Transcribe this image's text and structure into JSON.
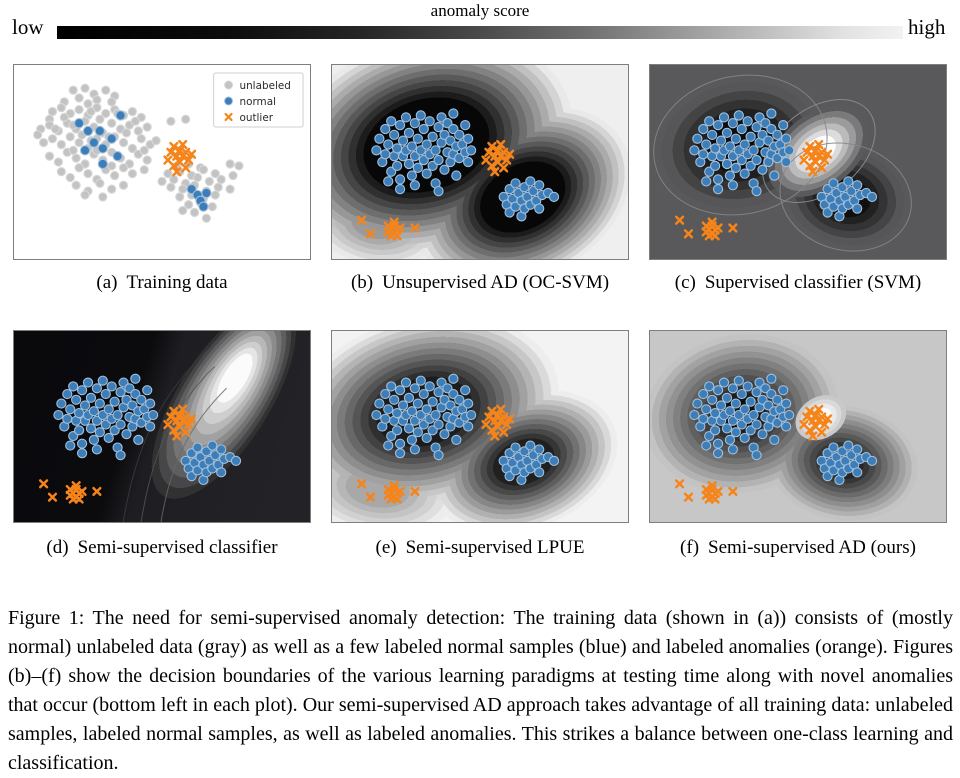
{
  "colorbar": {
    "title": "anomaly score",
    "low_label": "low",
    "high_label": "high",
    "gradient_endpoints": [
      "#000000",
      "#f2f2f2"
    ]
  },
  "legend": {
    "items": [
      {
        "label": "unlabeled",
        "marker": "circle",
        "role": "unlabeled"
      },
      {
        "label": "normal",
        "marker": "circle",
        "role": "normal"
      },
      {
        "label": "outlier",
        "marker": "x",
        "role": "outlier"
      }
    ]
  },
  "panels": [
    {
      "id": "a",
      "label": "(a)",
      "title": "Training data"
    },
    {
      "id": "b",
      "label": "(b)",
      "title": "Unsupervised AD (OC-SVM)"
    },
    {
      "id": "c",
      "label": "(c)",
      "title": "Supervised classifier (SVM)"
    },
    {
      "id": "d",
      "label": "(d)",
      "title": "Semi-supervised classifier"
    },
    {
      "id": "e",
      "label": "(e)",
      "title": "Semi-supervised LPUE"
    },
    {
      "id": "f",
      "label": "(f)",
      "title": "Semi-supervised AD (ours)"
    }
  ],
  "caption": "Figure 1: The need for semi-supervised anomaly detection: The training data (shown in (a)) consists of (mostly normal) unlabeled data (gray) as well as a few labeled normal samples (blue) and labeled anomalies (orange). Figures (b)–(f) show the decision boundaries of the various learning paradigms at testing time along with novel anomalies that occur (bottom left in each plot). Our semi-supervised AD approach takes advantage of all training data: unlabeled samples, labeled normal samples, as well as labeled anomalies. This strikes a balance between one-class learning and classification.",
  "colors": {
    "normal": "#3d7eb8",
    "normal_edge": "#a3c0da",
    "unlabeled": "#c3c3c3",
    "unlabeled_edge": "#d8d8d8",
    "outlier": "#f5841a",
    "anomaly_score_low": "#000000",
    "anomaly_score_high": "#f2f2f2"
  },
  "chart_data": {
    "type": "scatter",
    "coordinate_space": "percent of panel area, x rightward, y downward",
    "marker_styles": {
      "unlabeled": {
        "fill": "#c3c3c3",
        "edge": "#d8d8d8",
        "r": 4.1
      },
      "normal": {
        "fill": "#3d7eb8",
        "edge": "#a3c0da",
        "r": 4.6
      },
      "outlier": {
        "color": "#f5841a",
        "arm": 3.4,
        "width": 2.5
      }
    },
    "clusters": {
      "gray_left": [
        [
          20,
          13
        ],
        [
          24,
          12
        ],
        [
          27,
          15
        ],
        [
          31,
          13
        ],
        [
          34,
          16
        ],
        [
          22,
          17
        ],
        [
          28,
          18
        ],
        [
          33,
          19
        ],
        [
          17,
          19
        ],
        [
          25,
          20
        ],
        [
          13,
          24
        ],
        [
          16,
          22
        ],
        [
          19,
          25
        ],
        [
          22,
          23
        ],
        [
          25,
          26
        ],
        [
          28,
          22
        ],
        [
          31,
          25
        ],
        [
          34,
          23
        ],
        [
          37,
          26
        ],
        [
          40,
          24
        ],
        [
          12,
          28
        ],
        [
          43,
          27
        ],
        [
          9,
          33
        ],
        [
          12,
          31
        ],
        [
          15,
          34
        ],
        [
          18,
          30
        ],
        [
          21,
          33
        ],
        [
          24,
          29
        ],
        [
          27,
          32
        ],
        [
          30,
          35
        ],
        [
          33,
          30
        ],
        [
          36,
          33
        ],
        [
          39,
          31
        ],
        [
          42,
          34
        ],
        [
          45,
          32
        ],
        [
          8,
          36
        ],
        [
          10,
          40
        ],
        [
          13,
          38
        ],
        [
          16,
          41
        ],
        [
          19,
          37
        ],
        [
          22,
          40
        ],
        [
          25,
          43
        ],
        [
          28,
          38
        ],
        [
          31,
          41
        ],
        [
          34,
          37
        ],
        [
          37,
          40
        ],
        [
          40,
          43
        ],
        [
          43,
          38
        ],
        [
          46,
          41
        ],
        [
          48,
          39
        ],
        [
          12,
          47
        ],
        [
          15,
          50
        ],
        [
          18,
          45
        ],
        [
          21,
          48
        ],
        [
          24,
          51
        ],
        [
          27,
          46
        ],
        [
          30,
          49
        ],
        [
          33,
          45
        ],
        [
          36,
          48
        ],
        [
          39,
          51
        ],
        [
          42,
          46
        ],
        [
          45,
          49
        ],
        [
          16,
          55
        ],
        [
          19,
          58
        ],
        [
          22,
          53
        ],
        [
          25,
          56
        ],
        [
          28,
          59
        ],
        [
          31,
          54
        ],
        [
          34,
          57
        ],
        [
          37,
          53
        ],
        [
          40,
          56
        ],
        [
          44,
          54
        ],
        [
          21,
          62
        ],
        [
          25,
          65
        ],
        [
          29,
          61
        ],
        [
          33,
          64
        ],
        [
          37,
          62
        ],
        [
          30,
          68
        ],
        [
          24,
          67
        ],
        [
          14,
          33
        ],
        [
          17,
          27
        ],
        [
          20,
          31
        ],
        [
          23,
          36
        ],
        [
          26,
          24
        ],
        [
          29,
          28
        ],
        [
          32,
          37
        ],
        [
          35,
          25
        ],
        [
          38,
          35
        ],
        [
          41,
          29
        ],
        [
          44,
          44
        ],
        [
          20,
          44
        ],
        [
          28,
          44
        ],
        [
          33,
          52
        ],
        [
          26,
          39
        ]
      ],
      "gray_right": [
        [
          55,
          52
        ],
        [
          59,
          51
        ],
        [
          63,
          53
        ],
        [
          52,
          56
        ],
        [
          56,
          55
        ],
        [
          60,
          57
        ],
        [
          64,
          54
        ],
        [
          68,
          56
        ],
        [
          50,
          60
        ],
        [
          54,
          59
        ],
        [
          58,
          61
        ],
        [
          62,
          58
        ],
        [
          66,
          60
        ],
        [
          70,
          59
        ],
        [
          53,
          63
        ],
        [
          57,
          64
        ],
        [
          61,
          62
        ],
        [
          65,
          65
        ],
        [
          69,
          63
        ],
        [
          73,
          64
        ],
        [
          56,
          68
        ],
        [
          60,
          67
        ],
        [
          64,
          69
        ],
        [
          68,
          67
        ],
        [
          59,
          72
        ],
        [
          63,
          71
        ],
        [
          67,
          73
        ],
        [
          61,
          76
        ],
        [
          57,
          75
        ],
        [
          65,
          79
        ]
      ],
      "gray_extra": [
        [
          53,
          29
        ],
        [
          58,
          28
        ],
        [
          73,
          51
        ],
        [
          76,
          52
        ],
        [
          74,
          57
        ]
      ],
      "blue_labeled_left": [
        [
          22,
          30
        ],
        [
          25,
          34
        ],
        [
          27,
          40
        ],
        [
          29,
          34
        ],
        [
          30,
          43
        ],
        [
          33,
          38
        ],
        [
          35,
          47
        ],
        [
          30,
          51
        ],
        [
          24,
          44
        ],
        [
          36,
          26
        ]
      ],
      "blue_labeled_right": [
        [
          60,
          64
        ],
        [
          62,
          67
        ],
        [
          63,
          70
        ],
        [
          65,
          66
        ],
        [
          64,
          73
        ]
      ],
      "blue_left": [
        [
          15,
          44
        ],
        [
          16,
          38
        ],
        [
          17,
          50
        ],
        [
          18,
          33
        ],
        [
          18,
          46
        ],
        [
          19,
          41
        ],
        [
          20,
          55
        ],
        [
          20,
          29
        ],
        [
          21,
          47
        ],
        [
          21,
          36
        ],
        [
          22,
          52
        ],
        [
          22,
          43
        ],
        [
          23,
          31
        ],
        [
          23,
          59
        ],
        [
          24,
          39
        ],
        [
          24,
          47
        ],
        [
          25,
          27
        ],
        [
          25,
          44
        ],
        [
          26,
          51
        ],
        [
          26,
          35
        ],
        [
          27,
          57
        ],
        [
          27,
          42
        ],
        [
          28,
          30
        ],
        [
          28,
          47
        ],
        [
          29,
          38
        ],
        [
          29,
          53
        ],
        [
          30,
          26
        ],
        [
          30,
          44
        ],
        [
          31,
          49
        ],
        [
          31,
          33
        ],
        [
          32,
          56
        ],
        [
          32,
          41
        ],
        [
          33,
          29
        ],
        [
          33,
          46
        ],
        [
          34,
          52
        ],
        [
          34,
          37
        ],
        [
          35,
          61
        ],
        [
          35,
          44
        ],
        [
          36,
          32
        ],
        [
          36,
          49
        ],
        [
          37,
          40
        ],
        [
          37,
          27
        ],
        [
          38,
          54
        ],
        [
          38,
          36
        ],
        [
          39,
          45
        ],
        [
          39,
          30
        ],
        [
          40,
          50
        ],
        [
          40,
          39
        ],
        [
          41,
          33
        ],
        [
          41,
          46
        ],
        [
          42,
          42
        ],
        [
          42,
          57
        ],
        [
          43,
          36
        ],
        [
          43,
          48
        ],
        [
          44,
          41
        ],
        [
          45,
          45
        ],
        [
          45,
          31
        ],
        [
          46,
          50
        ],
        [
          46,
          38
        ],
        [
          47,
          44
        ],
        [
          41,
          25
        ],
        [
          28,
          62
        ],
        [
          23,
          64
        ],
        [
          36,
          65
        ],
        [
          19,
          60
        ]
      ],
      "blue_right": [
        [
          58,
          68
        ],
        [
          59,
          72
        ],
        [
          60,
          64
        ],
        [
          60,
          76
        ],
        [
          61,
          69
        ],
        [
          62,
          61
        ],
        [
          62,
          73
        ],
        [
          63,
          66
        ],
        [
          64,
          70
        ],
        [
          64,
          78
        ],
        [
          65,
          63
        ],
        [
          65,
          74
        ],
        [
          66,
          68
        ],
        [
          67,
          60
        ],
        [
          67,
          72
        ],
        [
          68,
          65
        ],
        [
          69,
          70
        ],
        [
          70,
          74
        ],
        [
          70,
          62
        ],
        [
          71,
          67
        ],
        [
          73,
          66
        ],
        [
          75,
          68
        ]
      ],
      "outliers_labeled": [
        [
          52,
          49
        ],
        [
          53,
          45
        ],
        [
          54,
          52
        ],
        [
          54,
          42
        ],
        [
          55,
          47
        ],
        [
          55,
          55
        ],
        [
          56,
          44
        ],
        [
          56,
          50
        ],
        [
          57,
          41
        ],
        [
          57,
          47
        ],
        [
          58,
          53
        ],
        [
          58,
          45
        ],
        [
          59,
          49
        ],
        [
          60,
          46
        ]
      ],
      "outliers_novel": [
        [
          10,
          80
        ],
        [
          13,
          87
        ],
        [
          19,
          83
        ],
        [
          20,
          85
        ],
        [
          21,
          87
        ],
        [
          21,
          83
        ],
        [
          22,
          85
        ],
        [
          22,
          88
        ],
        [
          20,
          88
        ],
        [
          23,
          84
        ],
        [
          19,
          86
        ],
        [
          21,
          81
        ],
        [
          28,
          84
        ]
      ]
    },
    "panel_series": {
      "a": [
        {
          "cluster": "gray_left",
          "role": "unlabeled"
        },
        {
          "cluster": "gray_right",
          "role": "unlabeled"
        },
        {
          "cluster": "gray_extra",
          "role": "unlabeled"
        },
        {
          "cluster": "blue_labeled_left",
          "role": "normal"
        },
        {
          "cluster": "blue_labeled_right",
          "role": "normal"
        },
        {
          "cluster": "outliers_labeled",
          "role": "outlier"
        }
      ],
      "b": [
        {
          "cluster": "blue_left",
          "role": "normal"
        },
        {
          "cluster": "blue_right",
          "role": "normal"
        },
        {
          "cluster": "outliers_labeled",
          "role": "outlier"
        },
        {
          "cluster": "outliers_novel",
          "role": "outlier"
        }
      ],
      "c": [
        {
          "cluster": "blue_left",
          "role": "normal"
        },
        {
          "cluster": "blue_right",
          "role": "normal"
        },
        {
          "cluster": "outliers_labeled",
          "role": "outlier"
        },
        {
          "cluster": "outliers_novel",
          "role": "outlier"
        }
      ],
      "d": [
        {
          "cluster": "blue_left",
          "role": "normal"
        },
        {
          "cluster": "blue_right",
          "role": "normal"
        },
        {
          "cluster": "outliers_labeled",
          "role": "outlier"
        },
        {
          "cluster": "outliers_novel",
          "role": "outlier"
        }
      ],
      "e": [
        {
          "cluster": "blue_left",
          "role": "normal"
        },
        {
          "cluster": "blue_right",
          "role": "normal"
        },
        {
          "cluster": "outliers_labeled",
          "role": "outlier"
        },
        {
          "cluster": "outliers_novel",
          "role": "outlier"
        }
      ],
      "f": [
        {
          "cluster": "blue_left",
          "role": "normal"
        },
        {
          "cluster": "blue_right",
          "role": "normal"
        },
        {
          "cluster": "outliers_labeled",
          "role": "outlier"
        },
        {
          "cluster": "outliers_novel",
          "role": "outlier"
        }
      ]
    }
  }
}
